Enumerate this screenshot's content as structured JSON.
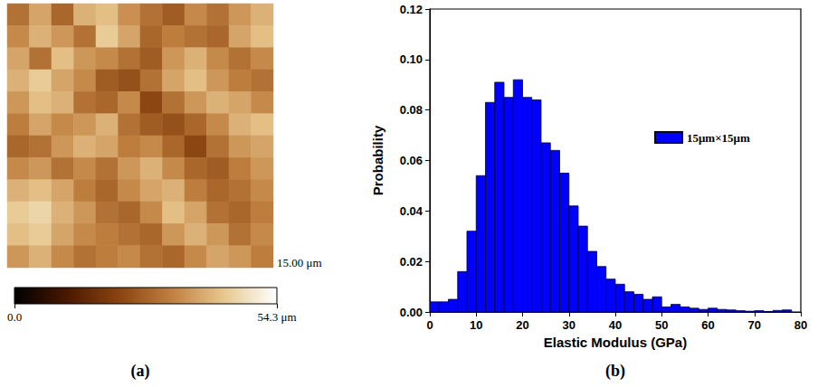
{
  "chart_data": [
    {
      "type": "heatmap",
      "panel_label": "(a)",
      "scale_label": "15.00 μm",
      "tick_labels": false,
      "cells": [
        [
          30,
          38,
          28,
          40,
          42,
          35,
          30,
          26,
          34,
          30,
          36,
          40
        ],
        [
          34,
          40,
          36,
          30,
          44,
          38,
          28,
          32,
          30,
          28,
          38,
          42
        ],
        [
          38,
          30,
          42,
          36,
          34,
          30,
          26,
          36,
          40,
          34,
          30,
          34
        ],
        [
          40,
          44,
          38,
          34,
          26,
          24,
          30,
          38,
          42,
          36,
          32,
          30
        ],
        [
          36,
          42,
          40,
          30,
          28,
          34,
          22,
          30,
          36,
          40,
          38,
          34
        ],
        [
          32,
          38,
          34,
          36,
          40,
          30,
          26,
          24,
          28,
          34,
          40,
          42
        ],
        [
          28,
          30,
          36,
          40,
          38,
          32,
          34,
          28,
          22,
          30,
          36,
          38
        ],
        [
          34,
          36,
          30,
          34,
          30,
          36,
          40,
          34,
          28,
          26,
          32,
          36
        ],
        [
          40,
          42,
          38,
          32,
          28,
          34,
          38,
          40,
          32,
          28,
          30,
          34
        ],
        [
          44,
          46,
          40,
          36,
          30,
          28,
          34,
          42,
          38,
          30,
          28,
          32
        ],
        [
          42,
          44,
          38,
          34,
          32,
          30,
          28,
          36,
          40,
          36,
          30,
          34
        ],
        [
          36,
          40,
          34,
          30,
          32,
          34,
          30,
          28,
          34,
          38,
          36,
          32
        ]
      ],
      "colorbar_range": [
        0,
        54.3
      ],
      "colorbar_ticks": [
        {
          "value": 0,
          "label": "0.0"
        },
        {
          "value": 54.3,
          "label": "54.3 μm"
        }
      ]
    },
    {
      "type": "histogram",
      "panel_label": "(b)",
      "x_label": "Elastic Modulus (GPa)",
      "y_label": "Probability",
      "bins": [
        0,
        2,
        4,
        6,
        8,
        10,
        12,
        14,
        16,
        18,
        20,
        22,
        24,
        26,
        28,
        30,
        32,
        34,
        36,
        38,
        40,
        42,
        44,
        46,
        48,
        50,
        52,
        54,
        56,
        58,
        60,
        62,
        64,
        66,
        68,
        70,
        72,
        74,
        76,
        78
      ],
      "series": [
        {
          "name": "15μm×15μm",
          "color": "#0000ff",
          "values": [
            0.004,
            0.004,
            0.005,
            0.016,
            0.032,
            0.054,
            0.083,
            0.091,
            0.085,
            0.092,
            0.085,
            0.084,
            0.067,
            0.064,
            0.055,
            0.042,
            0.034,
            0.024,
            0.018,
            0.013,
            0.011,
            0.008,
            0.007,
            0.005,
            0.006,
            0.002,
            0.003,
            0.002,
            0.0015,
            0.001,
            0.0015,
            0.001,
            0.0008,
            0.0005,
            0.0003,
            0.0005,
            0.0002,
            0.0006,
            0.0008
          ]
        }
      ],
      "xlim": [
        0,
        80
      ],
      "xticks": [
        0,
        10,
        20,
        30,
        40,
        50,
        60,
        70,
        80
      ],
      "ylim": [
        0,
        0.12
      ],
      "yticks": [
        {
          "value": 0,
          "label": "0.00"
        },
        {
          "value": 0.02,
          "label": "0.02"
        },
        {
          "value": 0.04,
          "label": "0.04"
        },
        {
          "value": 0.06,
          "label": "0.06"
        },
        {
          "value": 0.08,
          "label": "0.08"
        },
        {
          "value": 0.1,
          "label": "0.10"
        },
        {
          "value": 0.12,
          "label": "0.12"
        }
      ],
      "grid": false,
      "legend": "right"
    }
  ]
}
